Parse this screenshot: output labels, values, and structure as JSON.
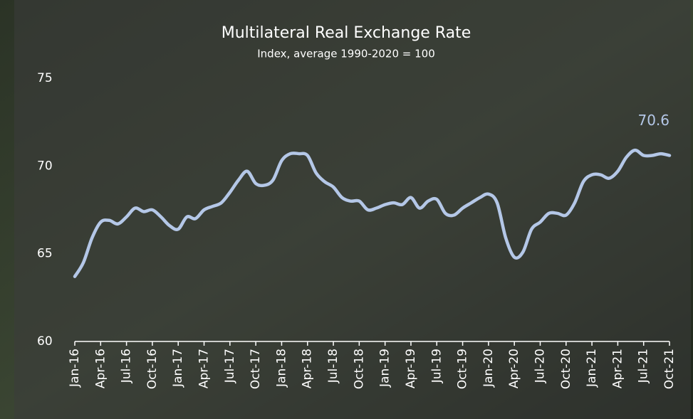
{
  "chart_data": {
    "type": "line",
    "title": "Multilateral Real Exchange Rate",
    "subtitle": "Index, average 1990-2020 = 100",
    "categories": [
      "Jan-16",
      null,
      null,
      "Apr-16",
      null,
      null,
      "Jul-16",
      null,
      null,
      "Oct-16",
      null,
      null,
      "Jan-17",
      null,
      null,
      "Apr-17",
      null,
      null,
      "Jul-17",
      null,
      null,
      "Oct-17",
      null,
      null,
      "Jan-18",
      null,
      null,
      "Apr-18",
      null,
      null,
      "Jul-18",
      null,
      null,
      "Oct-18",
      null,
      null,
      "Jan-19",
      null,
      null,
      "Apr-19",
      null,
      null,
      "Jul-19",
      null,
      null,
      "Oct-19",
      null,
      null,
      "Jan-20",
      null,
      null,
      "Apr-20",
      null,
      null,
      "Jul-20",
      null,
      null,
      "Oct-20",
      null,
      null,
      "Jan-21",
      null,
      null,
      "Apr-21",
      null,
      null,
      "Jul-21",
      null,
      null,
      "Oct-21"
    ],
    "series": [
      {
        "name": "Multilateral Real Exchange Rate",
        "color": "#b4c7e7",
        "values": [
          63.7,
          64.5,
          65.9,
          66.8,
          66.9,
          66.7,
          67.1,
          67.6,
          67.4,
          67.5,
          67.1,
          66.6,
          66.4,
          67.1,
          67.0,
          67.5,
          67.7,
          67.9,
          68.5,
          69.2,
          69.7,
          69.0,
          68.9,
          69.2,
          70.3,
          70.7,
          70.7,
          70.6,
          69.6,
          69.1,
          68.8,
          68.2,
          68.0,
          68.0,
          67.5,
          67.6,
          67.8,
          67.9,
          67.8,
          68.2,
          67.6,
          68.0,
          68.1,
          67.3,
          67.2,
          67.6,
          67.9,
          68.2,
          68.4,
          67.9,
          65.9,
          64.8,
          65.1,
          66.4,
          66.8,
          67.3,
          67.3,
          67.2,
          67.9,
          69.1,
          69.5,
          69.5,
          69.3,
          69.7,
          70.5,
          70.9,
          70.6,
          70.6,
          70.7,
          70.6
        ]
      }
    ],
    "ylim": [
      60,
      75
    ],
    "yticks": [
      60,
      65,
      70,
      75
    ],
    "grid": false
  }
}
